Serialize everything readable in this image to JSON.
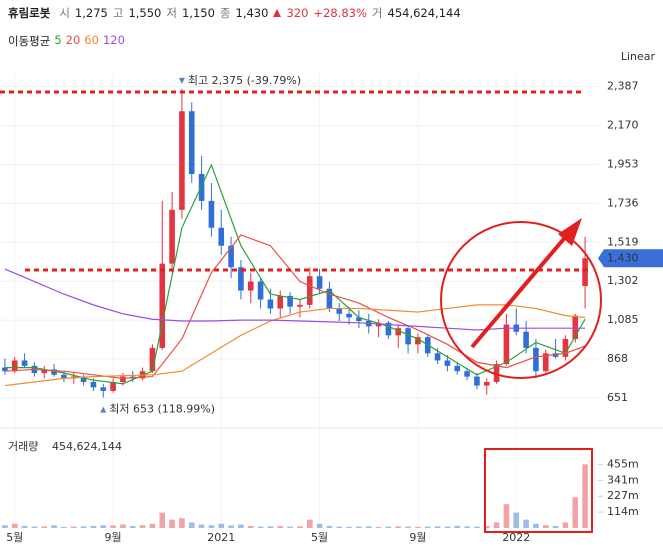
{
  "header": {
    "name": "휴림로봇",
    "open_label": "시",
    "open": "1,275",
    "high_label": "고",
    "high": "1,550",
    "low_label": "저",
    "low": "1,150",
    "close_label": "종",
    "close": "1,430",
    "change": "320",
    "change_pct": "+28.83%",
    "volume_label": "거",
    "volume": "454,624,144"
  },
  "chart_data": {
    "type": "candlestick",
    "scale_label": "Linear",
    "grid": true,
    "categories": [
      null,
      "5월",
      null,
      null,
      null,
      null,
      null,
      null,
      null,
      null,
      null,
      "9월",
      null,
      null,
      null,
      null,
      null,
      null,
      null,
      null,
      null,
      null,
      "2021",
      null,
      null,
      null,
      null,
      null,
      null,
      null,
      null,
      null,
      "5월",
      null,
      null,
      null,
      null,
      null,
      null,
      null,
      null,
      null,
      "9월",
      null,
      null,
      null,
      null,
      null,
      null,
      null,
      null,
      null,
      "2022",
      null,
      null,
      null,
      null,
      null,
      null,
      null
    ],
    "ylim": [
      500,
      2480
    ],
    "yticks": [
      651,
      868,
      {
        "value": 1085,
        "label": "1,085"
      },
      {
        "value": 1302,
        "label": "1,302"
      },
      {
        "value": 1519,
        "label": "1,519"
      },
      {
        "value": 1736,
        "label": "1,736"
      },
      {
        "value": 1953,
        "label": "1,953"
      },
      {
        "value": 2170,
        "label": "2,170"
      },
      {
        "value": 2387,
        "label": "2,387"
      }
    ],
    "candles": {
      "up_color": "#e3343f",
      "down_color": "#2f6fd6",
      "open": [
        820,
        800,
        860,
        830,
        790,
        810,
        780,
        760,
        770,
        740,
        710,
        690,
        740,
        770,
        760,
        800,
        930,
        1400,
        1700,
        2250,
        1900,
        1750,
        1600,
        1500,
        1380,
        1250,
        1300,
        1200,
        1150,
        1220,
        1160,
        1170,
        1330,
        1260,
        1150,
        1120,
        1100,
        1080,
        1050,
        1070,
        1000,
        1040,
        950,
        990,
        900,
        860,
        830,
        800,
        770,
        720,
        740,
        840,
        1060,
        1020,
        930,
        800,
        900,
        880,
        980,
        1275
      ],
      "high": [
        870,
        880,
        900,
        850,
        830,
        840,
        800,
        790,
        780,
        760,
        730,
        760,
        790,
        800,
        820,
        950,
        1750,
        1800,
        2375,
        2300,
        2000,
        1850,
        1700,
        1550,
        1420,
        1350,
        1320,
        1260,
        1250,
        1240,
        1200,
        1380,
        1370,
        1300,
        1180,
        1160,
        1140,
        1120,
        1090,
        1080,
        1060,
        1050,
        1010,
        1000,
        930,
        890,
        850,
        820,
        790,
        760,
        860,
        1120,
        1150,
        1080,
        980,
        920,
        980,
        1000,
        1120,
        1550
      ],
      "low": [
        780,
        790,
        820,
        770,
        760,
        770,
        740,
        730,
        720,
        690,
        653,
        680,
        720,
        740,
        750,
        790,
        920,
        1350,
        1650,
        1850,
        1700,
        1550,
        1450,
        1320,
        1200,
        1180,
        1150,
        1120,
        1100,
        1120,
        1100,
        1150,
        1230,
        1130,
        1080,
        1060,
        1040,
        1010,
        990,
        980,
        930,
        900,
        900,
        880,
        840,
        800,
        780,
        750,
        700,
        670,
        730,
        830,
        1000,
        900,
        760,
        790,
        870,
        860,
        960,
        1150
      ],
      "close": [
        800,
        860,
        830,
        790,
        810,
        780,
        760,
        770,
        740,
        710,
        690,
        740,
        770,
        760,
        800,
        930,
        1400,
        1700,
        2250,
        1900,
        1750,
        1600,
        1500,
        1380,
        1250,
        1300,
        1200,
        1150,
        1220,
        1160,
        1170,
        1330,
        1260,
        1150,
        1120,
        1100,
        1080,
        1050,
        1070,
        1000,
        1040,
        950,
        990,
        900,
        860,
        830,
        800,
        770,
        720,
        740,
        840,
        1060,
        1020,
        930,
        800,
        900,
        880,
        980,
        1110,
        1430
      ]
    },
    "last_price": {
      "value": 1430,
      "label": "1,430",
      "color": "#3a6fd8"
    },
    "annotations": [
      {
        "text": "최고 2,375 (-39.79%)",
        "value": 2375,
        "index": 18
      },
      {
        "text": "최저 653 (118.99%)",
        "value": 653,
        "index": 10
      }
    ],
    "moving_averages": {
      "title": "이동평균",
      "x": [
        0,
        3,
        6,
        9,
        12,
        15,
        18,
        21,
        24,
        27,
        30,
        33,
        36,
        39,
        42,
        45,
        48,
        51,
        54,
        57,
        59
      ],
      "series": [
        {
          "name": "5",
          "color": "#2aa33b",
          "values": [
            820,
            820,
            790,
            750,
            730,
            800,
            1600,
            1950,
            1500,
            1230,
            1200,
            1250,
            1100,
            1050,
            980,
            880,
            780,
            850,
            960,
            900,
            1090
          ]
        },
        {
          "name": "20",
          "color": "#e8504a",
          "values": [
            800,
            810,
            800,
            780,
            760,
            770,
            980,
            1350,
            1560,
            1500,
            1300,
            1230,
            1180,
            1100,
            1030,
            950,
            850,
            820,
            880,
            900,
            940
          ]
        },
        {
          "name": "60",
          "color": "#f08a2c",
          "values": [
            720,
            740,
            760,
            770,
            775,
            780,
            800,
            900,
            1000,
            1080,
            1130,
            1150,
            1150,
            1140,
            1130,
            1150,
            1170,
            1170,
            1150,
            1110,
            1100
          ]
        },
        {
          "name": "120",
          "color": "#9b4de0",
          "values": [
            1370,
            1300,
            1230,
            1170,
            1120,
            1090,
            1080,
            1080,
            1085,
            1085,
            1080,
            1075,
            1070,
            1060,
            1050,
            1040,
            1030,
            1040,
            1040,
            1040,
            1040
          ]
        }
      ]
    },
    "volume": {
      "title": "거래량",
      "label": "454,624,144",
      "up_color": "#f2a3a8",
      "down_color": "#9dbcec",
      "ylim": [
        0,
        600000000
      ],
      "yticks": [
        {
          "value": 114000000,
          "label": "114m"
        },
        {
          "value": 227000000,
          "label": "227m"
        },
        {
          "value": 341000000,
          "label": "341m"
        },
        {
          "value": 455000000,
          "label": "455m"
        }
      ],
      "values": [
        20000000,
        30000000,
        15000000,
        10000000,
        12000000,
        20000000,
        8000000,
        10000000,
        12000000,
        15000000,
        20000000,
        18000000,
        25000000,
        15000000,
        20000000,
        30000000,
        110000000,
        60000000,
        70000000,
        40000000,
        25000000,
        20000000,
        30000000,
        18000000,
        25000000,
        15000000,
        10000000,
        12000000,
        14000000,
        10000000,
        12000000,
        60000000,
        30000000,
        15000000,
        10000000,
        8000000,
        10000000,
        12000000,
        8000000,
        10000000,
        12000000,
        10000000,
        8000000,
        10000000,
        12000000,
        10000000,
        15000000,
        12000000,
        10000000,
        14000000,
        40000000,
        170000000,
        110000000,
        60000000,
        30000000,
        20000000,
        15000000,
        40000000,
        220000000,
        454624144
      ]
    }
  }
}
